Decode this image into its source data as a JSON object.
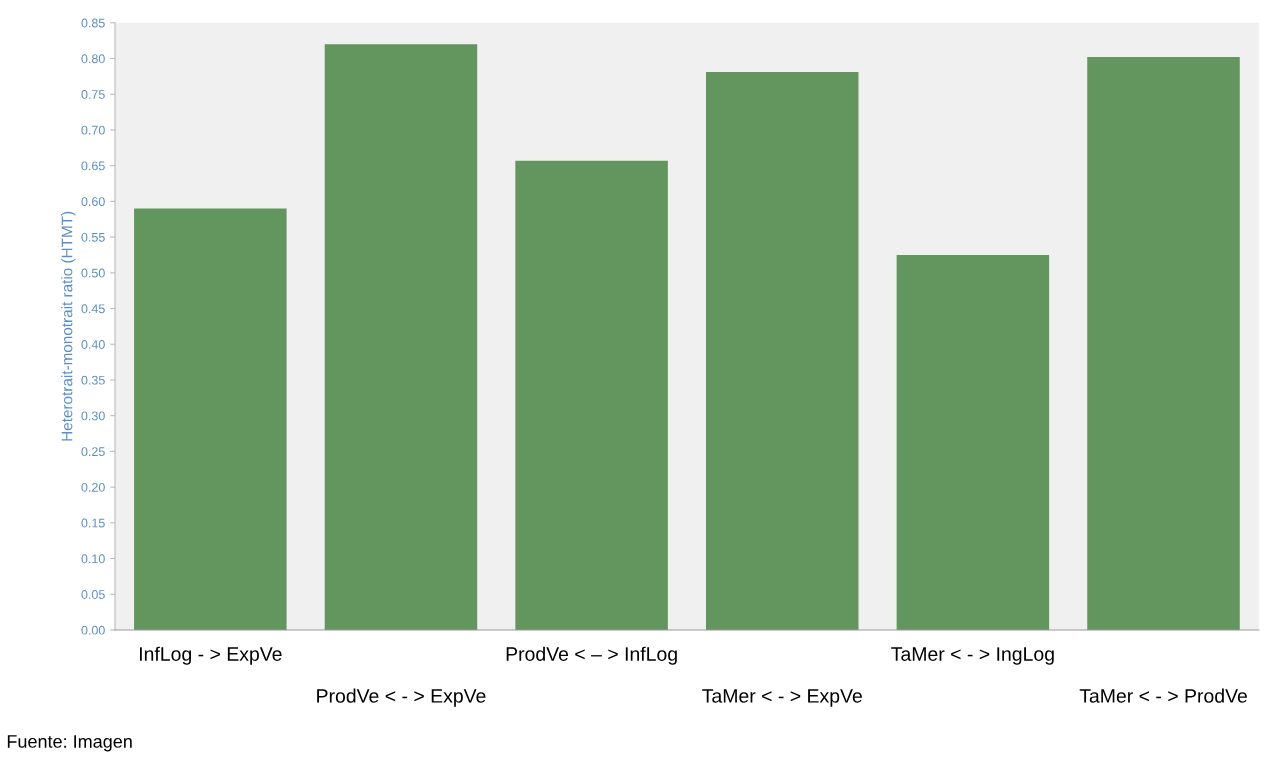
{
  "chart_data": {
    "type": "bar",
    "ylabel": "Heterotrait-monotrait ratio (HTMT)",
    "categories": [
      "InfLog - > ExpVe",
      "ProdVe < - > ExpVe",
      "ProdVe < – > InfLog",
      "TaMer < - > ExpVe",
      "TaMer < - > IngLog",
      "TaMer < - > ProdVe"
    ],
    "values": [
      0.59,
      0.82,
      0.657,
      0.781,
      0.525,
      0.802
    ],
    "color": "#63955f",
    "ylim": [
      0,
      0.85
    ],
    "yticks": [
      {
        "value": 0,
        "label": "0.00"
      },
      {
        "value": 0.05,
        "label": "0.05"
      },
      {
        "value": 0.1,
        "label": "0.10"
      },
      {
        "value": 0.15,
        "label": "0.15"
      },
      {
        "value": 0.2,
        "label": "0.20"
      },
      {
        "value": 0.25,
        "label": "0.25"
      },
      {
        "value": 0.3,
        "label": "0.30"
      },
      {
        "value": 0.35,
        "label": "0.35"
      },
      {
        "value": 0.4,
        "label": "0.40"
      },
      {
        "value": 0.45,
        "label": "0.45"
      },
      {
        "value": 0.5,
        "label": "0.50"
      },
      {
        "value": 0.55,
        "label": "0.55"
      },
      {
        "value": 0.6,
        "label": "0.60"
      },
      {
        "value": 0.65,
        "label": "0.65"
      },
      {
        "value": 0.7,
        "label": "0.70"
      },
      {
        "value": 0.75,
        "label": "0.75"
      },
      {
        "value": 0.8,
        "label": "0.80"
      },
      {
        "value": 0.85,
        "label": "0.85"
      }
    ],
    "grid": false,
    "annotations": [
      "Fuente: Imagen"
    ]
  }
}
